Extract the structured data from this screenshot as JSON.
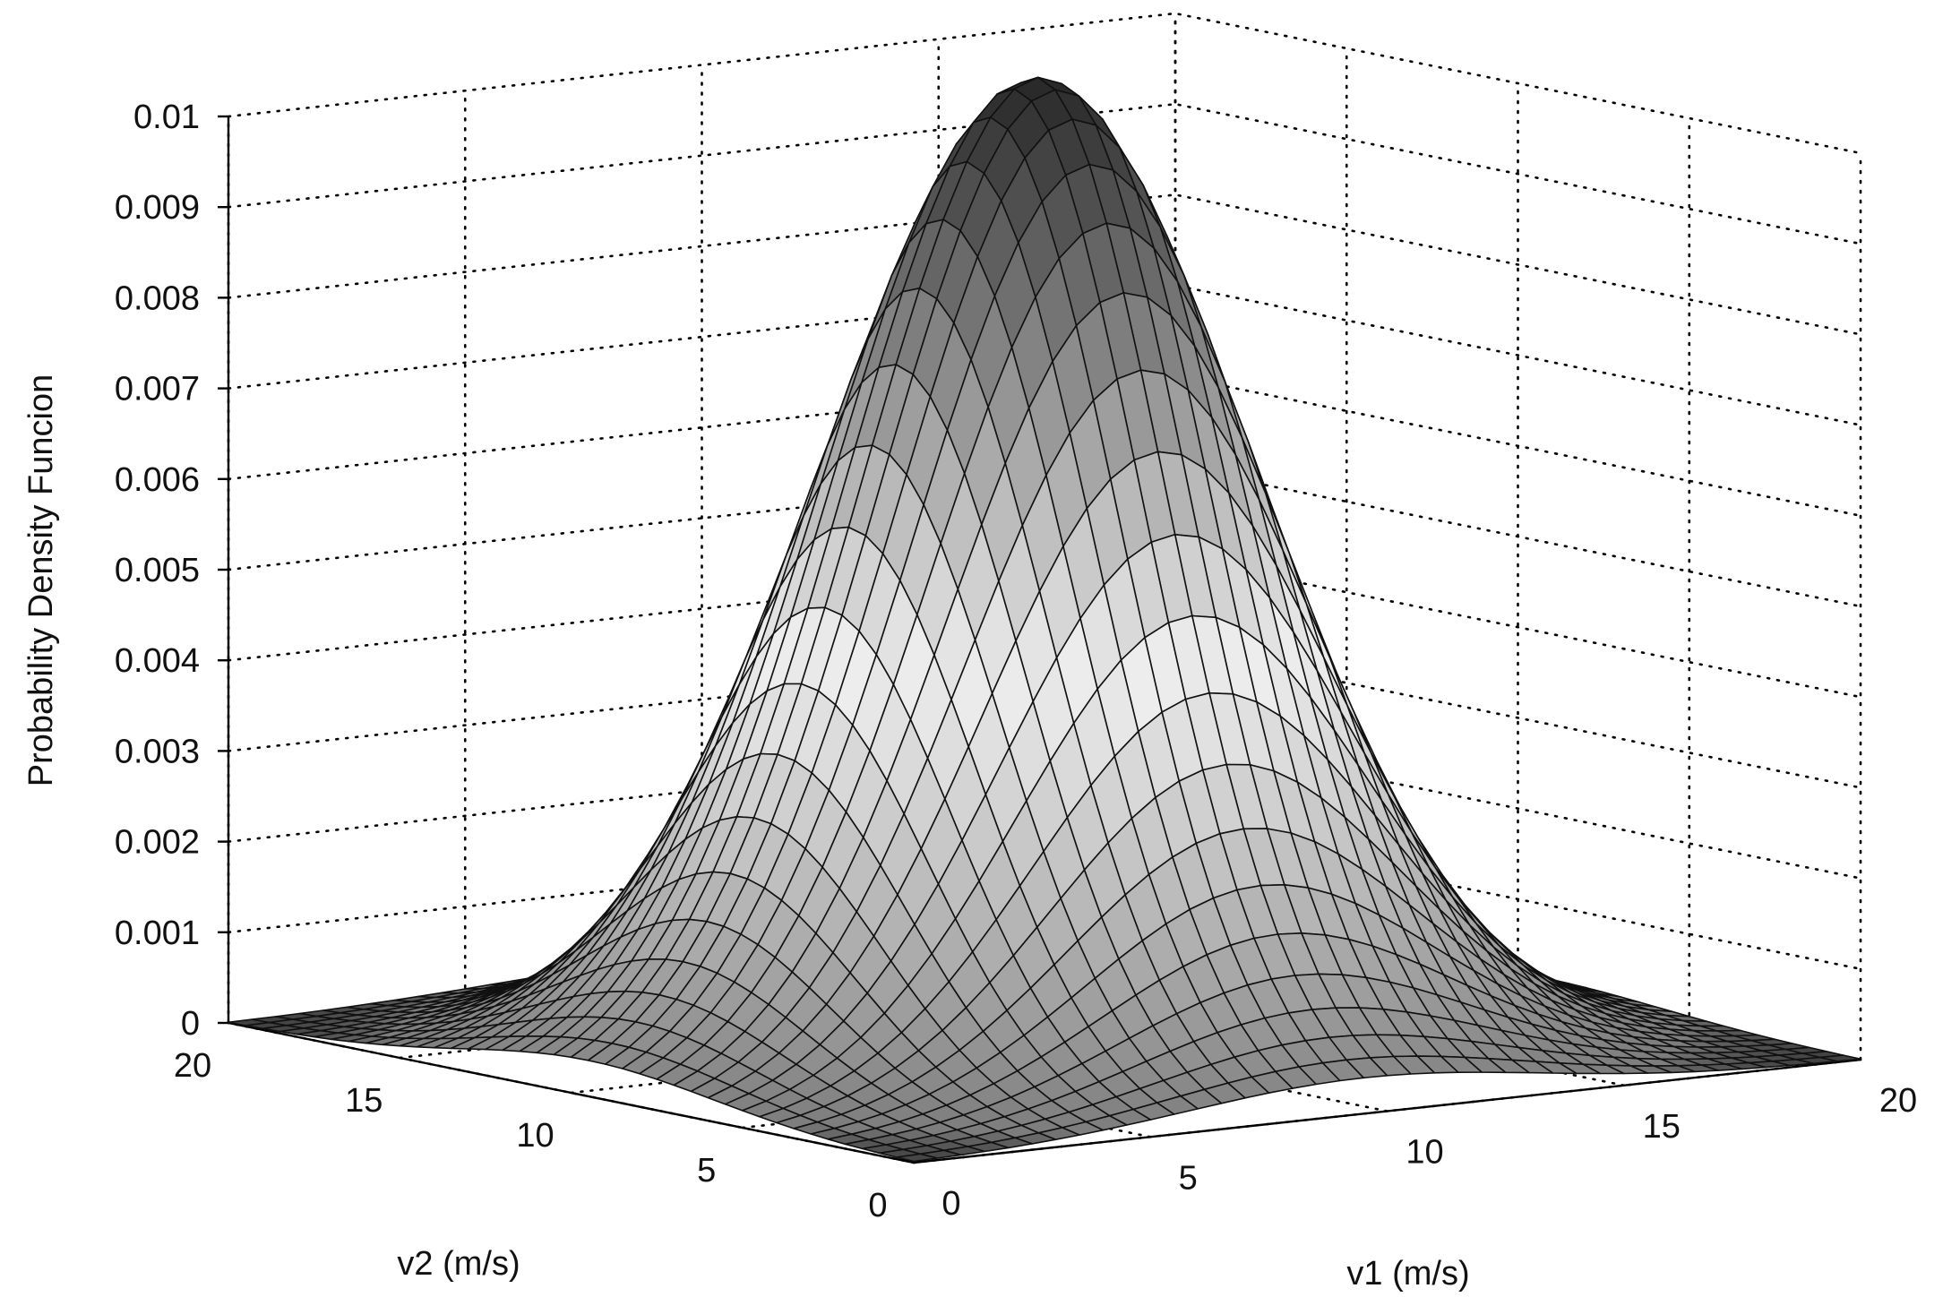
{
  "chart_data": {
    "type": "surface",
    "title": "",
    "zlabel": "Probability Density Funcion",
    "v1_label": "v1 (m/s)",
    "v2_label": "v2 (m/s)",
    "v1_ticks": [
      "0",
      "5",
      "10",
      "15",
      "20"
    ],
    "v2_ticks": [
      "0",
      "5",
      "10",
      "15",
      "20"
    ],
    "z_ticks": [
      "0",
      "0.001",
      "0.002",
      "0.003",
      "0.004",
      "0.005",
      "0.006",
      "0.007",
      "0.008",
      "0.009",
      "0.01"
    ],
    "v1_range": [
      0,
      20
    ],
    "v2_range": [
      0,
      20
    ],
    "z_range": [
      0,
      0.01
    ],
    "grid": true,
    "colormap": "gray",
    "mesh_size": 40,
    "surface": {
      "shape": "bivariate bell",
      "peak_v1": 9.5,
      "peak_v2": 9.5,
      "peak_pdf": 0.0107,
      "spread_v1": 3.7,
      "spread_v2": 3.7
    }
  }
}
